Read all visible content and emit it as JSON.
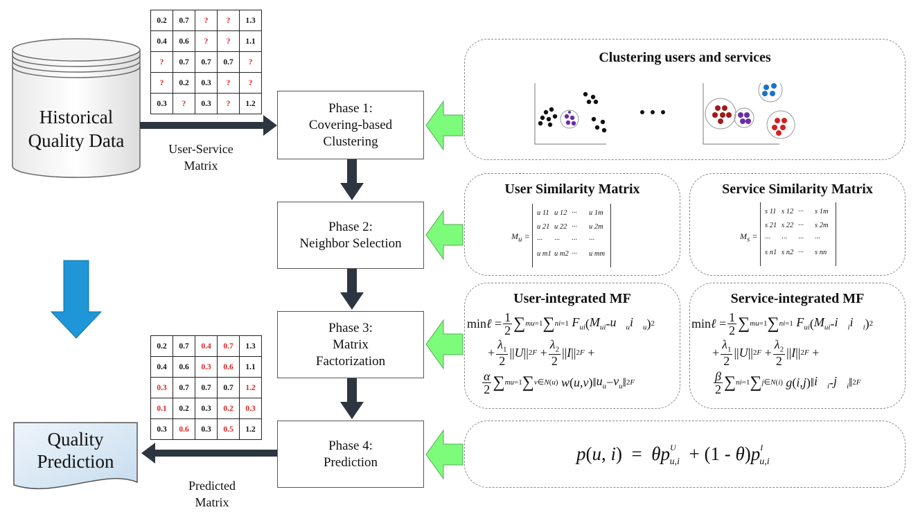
{
  "database": {
    "lines": [
      "Historical",
      "Quality Data"
    ]
  },
  "input_matrix": {
    "label_lines": [
      "User-Service",
      "Matrix"
    ],
    "rows": [
      [
        "0.2",
        "0.7",
        "?",
        "?",
        "1.3"
      ],
      [
        "0.4",
        "0.6",
        "?",
        "?",
        "1.1"
      ],
      [
        "?",
        "0.7",
        "0.7",
        "0.7",
        "?"
      ],
      [
        "?",
        "0.2",
        "0.3",
        "?",
        "?"
      ],
      [
        "0.3",
        "?",
        "0.3",
        "?",
        "1.2"
      ]
    ]
  },
  "predicted_matrix": {
    "label_lines": [
      "Predicted",
      "Matrix"
    ],
    "rows": [
      [
        "0.2",
        "0.7",
        "0.4",
        "0.7",
        "1.3"
      ],
      [
        "0.4",
        "0.6",
        "0.3",
        "0.6",
        "1.1"
      ],
      [
        "0.3",
        "0.7",
        "0.7",
        "0.7",
        "1.2"
      ],
      [
        "0.1",
        "0.2",
        "0.3",
        "0.2",
        "0.3"
      ],
      [
        "0.3",
        "0.6",
        "0.3",
        "0.5",
        "1.2"
      ]
    ],
    "red_cells": [
      [
        0,
        2
      ],
      [
        0,
        3
      ],
      [
        1,
        2
      ],
      [
        1,
        3
      ],
      [
        2,
        0
      ],
      [
        2,
        4
      ],
      [
        3,
        0
      ],
      [
        3,
        3
      ],
      [
        3,
        4
      ],
      [
        4,
        1
      ],
      [
        4,
        3
      ]
    ]
  },
  "phases": [
    {
      "lines": [
        "Phase 1:",
        "Covering-based",
        "Clustering"
      ]
    },
    {
      "lines": [
        "Phase 2:",
        "Neighbor Selection"
      ]
    },
    {
      "lines": [
        "Phase 3:",
        "Matrix",
        "Factorization"
      ]
    },
    {
      "lines": [
        "Phase 4:",
        "Prediction"
      ]
    }
  ],
  "output": {
    "lines": [
      "Quality",
      "Prediction"
    ]
  },
  "panels": {
    "clustering": {
      "title": "Clustering users and services",
      "ellipsis": "• • •"
    },
    "user_similarity": {
      "title": "User Similarity Matrix",
      "symbol": "M",
      "subscript": "u",
      "cells": [
        [
          "u 11",
          "u 12",
          "···",
          "u 1m"
        ],
        [
          "u 21",
          "u 22",
          "···",
          "u 2m"
        ],
        [
          "···",
          "···",
          "···",
          "···"
        ],
        [
          "u m1",
          "u m2",
          "···",
          "u mm"
        ]
      ]
    },
    "service_similarity": {
      "title": "Service Similarity Matrix",
      "symbol": "M",
      "subscript": "s",
      "cells": [
        [
          "s 11",
          "s 12",
          "···",
          "s 1m"
        ],
        [
          "s 21",
          "s 22",
          "···",
          "s 2m"
        ],
        [
          "···",
          "···",
          "···",
          "···"
        ],
        [
          "s n1",
          "s n2",
          "···",
          "s nn"
        ]
      ]
    },
    "user_mf": {
      "title": "User-integrated MF"
    },
    "service_mf": {
      "title": "Service-integrated MF"
    },
    "prediction": {
      "formula": "p(u, i) = θp^U_{u,i} + (1 - θ)p^I_{u,i}"
    }
  },
  "colors": {
    "green_arrow": "#7CFC7A",
    "blue_arrow": "#1e96d8",
    "dark_arrow": "#2d3540",
    "red": "#e02020"
  }
}
